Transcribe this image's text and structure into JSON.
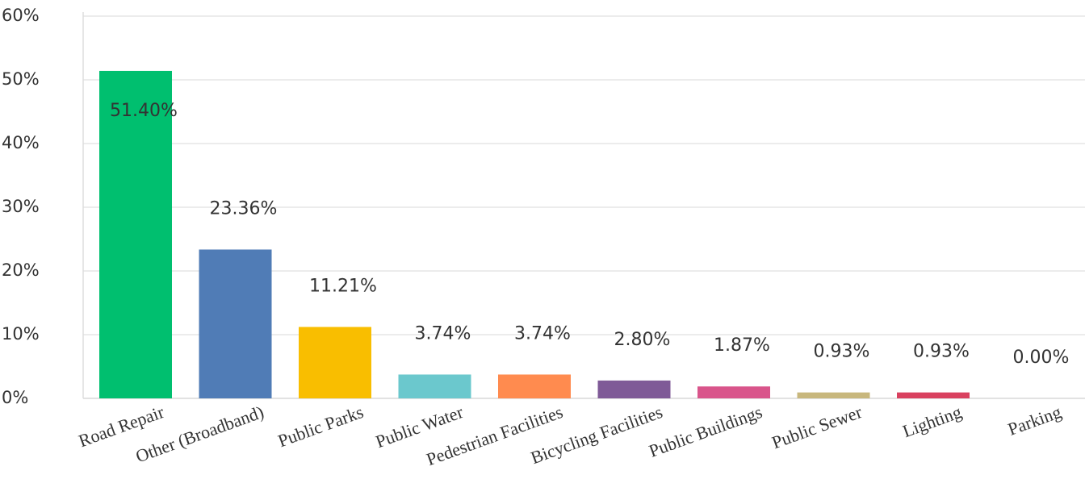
{
  "chart_data": {
    "type": "bar",
    "categories": [
      "Road Repair",
      "Other (Broadband)",
      "Public Parks",
      "Public Water",
      "Pedestrian Facilities",
      "Bicycling Facilities",
      "Public Buildings",
      "Public Sewer",
      "Lighting",
      "Parking"
    ],
    "values": [
      51.4,
      23.36,
      11.21,
      3.74,
      3.74,
      2.8,
      1.87,
      0.93,
      0.93,
      0.0
    ],
    "value_labels": [
      "51.40%",
      "23.36%",
      "11.21%",
      "3.74%",
      "3.74%",
      "2.80%",
      "1.87%",
      "0.93%",
      "0.93%",
      "0.00%"
    ],
    "colors": [
      "#00bf6f",
      "#507cb6",
      "#f9be00",
      "#6bc8cd",
      "#ff8b4f",
      "#7f5a97",
      "#d9558b",
      "#c8b77d",
      "#d9415f",
      "#999999"
    ],
    "ylim": [
      0,
      60
    ],
    "yticks": [
      {
        "value": 0,
        "label": "0%"
      },
      {
        "value": 10,
        "label": "10%"
      },
      {
        "value": 20,
        "label": "20%"
      },
      {
        "value": 30,
        "label": "30%"
      },
      {
        "value": 40,
        "label": "40%"
      },
      {
        "value": 50,
        "label": "50%"
      },
      {
        "value": 60,
        "label": "60%"
      }
    ],
    "grid": true
  }
}
